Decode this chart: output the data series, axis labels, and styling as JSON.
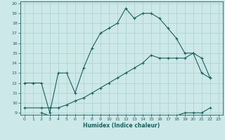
{
  "xlabel": "Humidex (Indice chaleur)",
  "background_color": "#cde8e8",
  "grid_color": "#aad0d0",
  "line_color": "#1a6060",
  "xlim": [
    -0.5,
    23.5
  ],
  "ylim": [
    8.8,
    20.2
  ],
  "xticks": [
    0,
    1,
    2,
    3,
    4,
    5,
    6,
    7,
    8,
    9,
    10,
    11,
    12,
    13,
    14,
    15,
    16,
    17,
    18,
    19,
    20,
    21,
    22,
    23
  ],
  "yticks": [
    9,
    10,
    11,
    12,
    13,
    14,
    15,
    16,
    17,
    18,
    19,
    20
  ],
  "curve1_x": [
    0,
    1,
    2,
    3,
    4,
    5,
    6,
    7,
    8,
    9,
    10,
    11,
    12,
    13,
    14,
    15,
    16,
    17,
    18,
    19,
    20,
    21,
    22
  ],
  "curve1_y": [
    12,
    12,
    12,
    9,
    13,
    13,
    11,
    13.5,
    15.5,
    17,
    17.5,
    18,
    19.5,
    18.5,
    19,
    19,
    18.5,
    17.5,
    16.5,
    15,
    15,
    13,
    12.5
  ],
  "curve2_x": [
    0,
    2,
    3,
    4,
    5,
    6,
    7,
    8,
    9,
    10,
    11,
    12,
    13,
    14,
    15,
    16,
    17,
    18,
    19,
    20,
    21,
    22
  ],
  "curve2_y": [
    9.5,
    9.5,
    9.5,
    9.5,
    9.8,
    10.2,
    10.5,
    11.0,
    11.5,
    12.0,
    12.5,
    13.0,
    13.5,
    14.0,
    14.8,
    14.5,
    14.5,
    14.5,
    14.5,
    15.0,
    14.5,
    12.5
  ],
  "curve3_x": [
    2,
    3,
    4,
    5,
    6,
    7,
    8,
    9,
    10,
    11,
    12,
    13,
    14,
    15,
    16,
    17,
    18,
    19,
    20,
    21,
    22
  ],
  "curve3_y": [
    9.0,
    8.7,
    8.7,
    8.7,
    8.7,
    8.7,
    8.7,
    8.7,
    8.7,
    8.7,
    8.7,
    8.7,
    8.7,
    8.7,
    8.7,
    8.7,
    8.7,
    9.0,
    9.0,
    9.0,
    9.5
  ]
}
